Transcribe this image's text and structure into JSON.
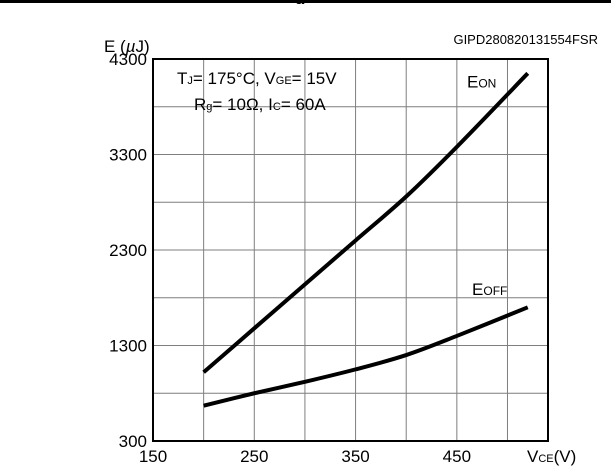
{
  "figure_code": "GIPD280820131554FSR",
  "heading_fragment": "g",
  "conditions": {
    "line1": [
      "T",
      "J",
      "= 175°C, V",
      "GE",
      "= 15V"
    ],
    "line2": [
      "R",
      "g",
      "= 10Ω, I",
      "C",
      "= 60A"
    ]
  },
  "chart_data": {
    "type": "line",
    "ylabel": [
      "E (",
      "µ",
      "J)"
    ],
    "xlabel": [
      "V",
      "CE",
      "(V)"
    ],
    "xlim": [
      150,
      540
    ],
    "ylim": [
      300,
      4300
    ],
    "x_ticks": [
      "150",
      "250",
      "350",
      "450"
    ],
    "y_ticks": [
      "300",
      "1300",
      "2300",
      "3300",
      "4300"
    ],
    "grid_x": [
      200,
      250,
      300,
      350,
      400,
      450,
      500
    ],
    "grid_y": [
      800,
      1300,
      1800,
      2300,
      2800,
      3300,
      3800
    ],
    "series": [
      {
        "name": [
          "E",
          "ON"
        ],
        "x": [
          200,
          250,
          300,
          350,
          400,
          450,
          520
        ],
        "y": [
          1020,
          1480,
          1940,
          2400,
          2860,
          3380,
          4150
        ],
        "label_at": [
          460,
          4000
        ]
      },
      {
        "name": [
          "E",
          "OFF"
        ],
        "x": [
          200,
          250,
          300,
          350,
          400,
          450,
          520
        ],
        "y": [
          670,
          800,
          920,
          1050,
          1200,
          1400,
          1700
        ],
        "label_at": [
          465,
          1830
        ]
      }
    ]
  }
}
